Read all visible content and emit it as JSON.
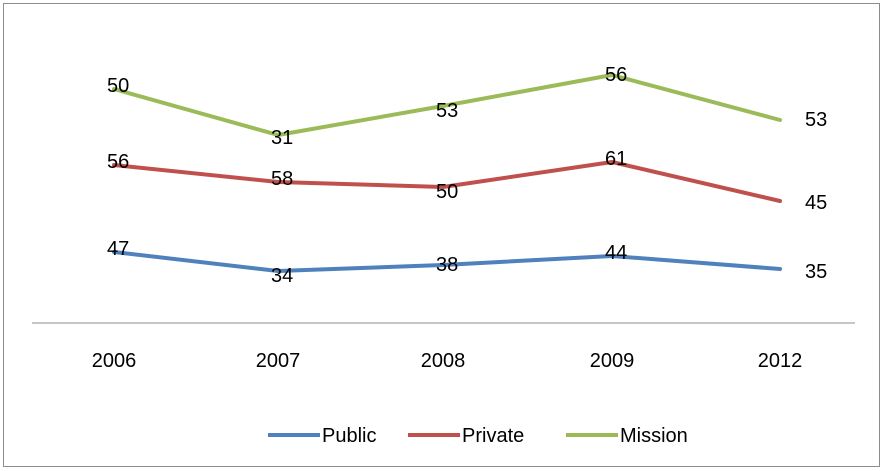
{
  "chart_data": {
    "type": "line",
    "categories": [
      "2006",
      "2007",
      "2008",
      "2009",
      "2012"
    ],
    "series": [
      {
        "name": "Public",
        "color": "#4f81bd",
        "values": [
          47,
          34,
          38,
          44,
          35
        ]
      },
      {
        "name": "Private",
        "color": "#c0504d",
        "values": [
          56,
          58,
          50,
          61,
          45
        ]
      },
      {
        "name": "Mission",
        "color": "#9bbb59",
        "values": [
          50,
          31,
          53,
          56,
          53
        ]
      }
    ],
    "legend_position": "bottom",
    "grid": false
  }
}
